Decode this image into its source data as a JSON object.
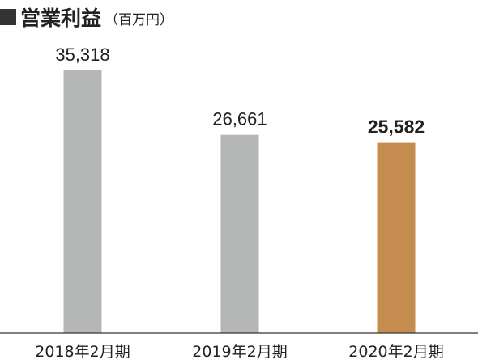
{
  "chart_data": {
    "type": "bar",
    "title": "営業利益",
    "unit": "（百万円）",
    "categories": [
      "2018年2月期",
      "2019年2月期",
      "2020年2月期"
    ],
    "values": [
      35318,
      26661,
      25582
    ],
    "value_labels": [
      "35,318",
      "26,661",
      "25,582"
    ],
    "highlight_index": 2,
    "ylim": [
      0,
      40000
    ],
    "grid": false,
    "legend": "none",
    "colors": {
      "bar": "#b5b6b6",
      "highlight_bar": "#c58c50",
      "axis": "#333333",
      "title_square": "#333333"
    }
  }
}
